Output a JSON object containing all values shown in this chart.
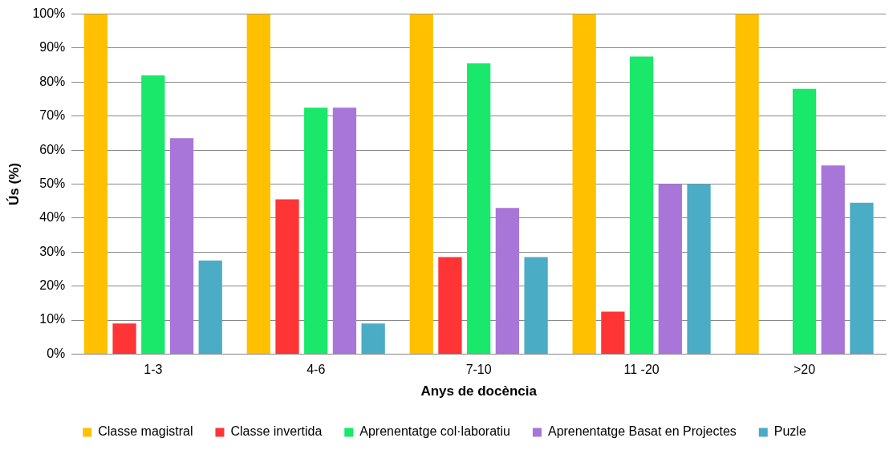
{
  "chart_data": {
    "type": "bar",
    "xlabel": "Anys de docència",
    "ylabel": "Ús (%)",
    "categories": [
      "1-3",
      "4-6",
      "7-10",
      "11 -20",
      ">20"
    ],
    "series": [
      {
        "name": "Classe magistral",
        "color": "#ffc000",
        "values": [
          100,
          100,
          100,
          100,
          100
        ]
      },
      {
        "name": "Classe invertida",
        "color": "#ff3535",
        "values": [
          9,
          45.5,
          28.5,
          12.5,
          0
        ]
      },
      {
        "name": "Aprenentatge col·laboratiu",
        "color": "#19e86a",
        "values": [
          82,
          72.5,
          85.5,
          87.5,
          78
        ]
      },
      {
        "name": "Aprenentatge Basat en Projectes",
        "color": "#a875d9",
        "values": [
          63.5,
          72.5,
          43,
          50,
          55.5
        ]
      },
      {
        "name": "Puzle",
        "color": "#4bacc6",
        "values": [
          27.5,
          9,
          28.5,
          50,
          44.5
        ]
      }
    ],
    "ylim": [
      0,
      100
    ],
    "yticks": [
      {
        "value": 0,
        "label": "0%"
      },
      {
        "value": 10,
        "label": "10%"
      },
      {
        "value": 20,
        "label": "20%"
      },
      {
        "value": 30,
        "label": "30%"
      },
      {
        "value": 40,
        "label": "40%"
      },
      {
        "value": 50,
        "label": "50%"
      },
      {
        "value": 60,
        "label": "60%"
      },
      {
        "value": 70,
        "label": "70%"
      },
      {
        "value": 80,
        "label": "80%"
      },
      {
        "value": 90,
        "label": "90%"
      },
      {
        "value": 100,
        "label": "100%"
      }
    ],
    "grid": "y",
    "legend": "bottom"
  }
}
